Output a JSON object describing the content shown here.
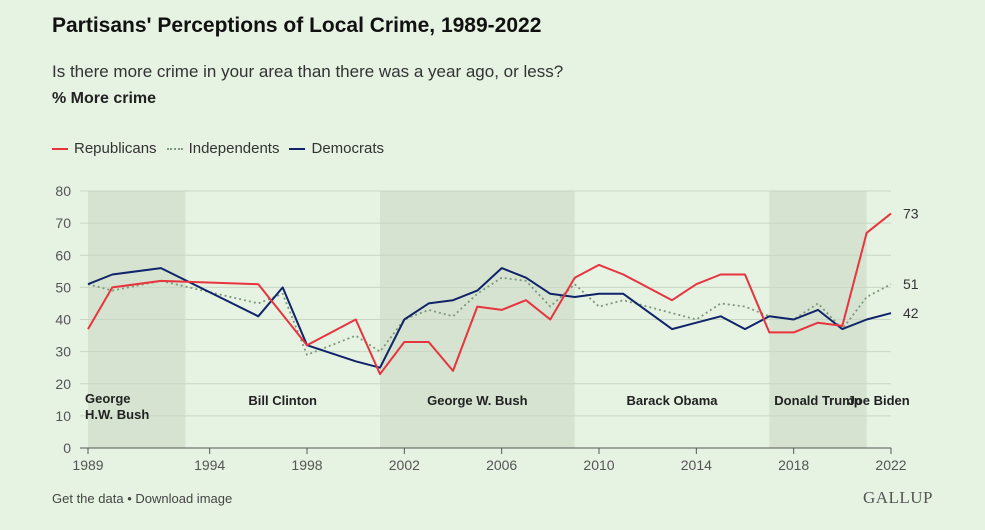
{
  "title": "Partisans' Perceptions of Local Crime, 1989-2022",
  "subtitle": "Is there more crime in your area than there was a year ago, or less?",
  "measure_label": "% More crime",
  "footer": {
    "get_data": "Get the data",
    "separator": "•",
    "download": "Download image",
    "brand": "GALLUP"
  },
  "colors": {
    "republicans": "#e8343e",
    "independents": "#7d9a7d",
    "democrats": "#10246a",
    "shade": "#d5e3d0",
    "background": "#e6f2e2"
  },
  "chart_data": {
    "type": "line",
    "xlim": [
      1989,
      2022
    ],
    "ylim": [
      0,
      80
    ],
    "x_ticks": [
      1989,
      1994,
      1998,
      2002,
      2006,
      2010,
      2014,
      2018,
      2022
    ],
    "y_ticks": [
      0,
      10,
      20,
      30,
      40,
      50,
      60,
      70,
      80
    ],
    "grid": true,
    "legend_position": "top-left",
    "series": [
      {
        "name": "Republicans",
        "style": "solid",
        "end_label": "73",
        "points": [
          [
            1989,
            37
          ],
          [
            1990,
            50
          ],
          [
            1992,
            52
          ],
          [
            1996,
            51
          ],
          [
            1998,
            32
          ],
          [
            2000,
            40
          ],
          [
            2001,
            23
          ],
          [
            2002,
            33
          ],
          [
            2003,
            33
          ],
          [
            2004,
            24
          ],
          [
            2005,
            44
          ],
          [
            2006,
            43
          ],
          [
            2007,
            46
          ],
          [
            2008,
            40
          ],
          [
            2009,
            53
          ],
          [
            2010,
            57
          ],
          [
            2011,
            54
          ],
          [
            2013,
            46
          ],
          [
            2014,
            51
          ],
          [
            2015,
            54
          ],
          [
            2016,
            54
          ],
          [
            2017,
            36
          ],
          [
            2018,
            36
          ],
          [
            2019,
            39
          ],
          [
            2020,
            38
          ],
          [
            2021,
            67
          ],
          [
            2022,
            73
          ]
        ]
      },
      {
        "name": "Independents",
        "style": "dotted",
        "end_label": "51",
        "points": [
          [
            1989,
            51
          ],
          [
            1990,
            49
          ],
          [
            1992,
            52
          ],
          [
            1996,
            45
          ],
          [
            1997,
            48
          ],
          [
            1998,
            29
          ],
          [
            2000,
            35
          ],
          [
            2001,
            30
          ],
          [
            2002,
            40
          ],
          [
            2003,
            43
          ],
          [
            2004,
            41
          ],
          [
            2005,
            48
          ],
          [
            2006,
            53
          ],
          [
            2007,
            52
          ],
          [
            2008,
            44
          ],
          [
            2009,
            51
          ],
          [
            2010,
            44
          ],
          [
            2011,
            46
          ],
          [
            2013,
            42
          ],
          [
            2014,
            40
          ],
          [
            2015,
            45
          ],
          [
            2016,
            44
          ],
          [
            2017,
            41
          ],
          [
            2018,
            40
          ],
          [
            2019,
            45
          ],
          [
            2020,
            37
          ],
          [
            2021,
            47
          ],
          [
            2022,
            51
          ]
        ]
      },
      {
        "name": "Democrats",
        "style": "solid",
        "end_label": "42",
        "points": [
          [
            1989,
            51
          ],
          [
            1990,
            54
          ],
          [
            1992,
            56
          ],
          [
            1996,
            41
          ],
          [
            1997,
            50
          ],
          [
            1998,
            32
          ],
          [
            2000,
            27
          ],
          [
            2001,
            25
          ],
          [
            2002,
            40
          ],
          [
            2003,
            45
          ],
          [
            2004,
            46
          ],
          [
            2005,
            49
          ],
          [
            2006,
            56
          ],
          [
            2007,
            53
          ],
          [
            2008,
            48
          ],
          [
            2009,
            47
          ],
          [
            2010,
            48
          ],
          [
            2011,
            48
          ],
          [
            2013,
            37
          ],
          [
            2014,
            39
          ],
          [
            2015,
            41
          ],
          [
            2016,
            37
          ],
          [
            2017,
            41
          ],
          [
            2018,
            40
          ],
          [
            2019,
            43
          ],
          [
            2020,
            37
          ],
          [
            2021,
            40
          ],
          [
            2022,
            42
          ]
        ]
      }
    ],
    "presidencies": [
      {
        "label_lines": [
          "George",
          "H.W. Bush"
        ],
        "start": 1989,
        "end": 1993,
        "shaded": true,
        "align": "start"
      },
      {
        "label_lines": [
          "Bill Clinton"
        ],
        "start": 1993,
        "end": 2001,
        "shaded": false,
        "align": "middle"
      },
      {
        "label_lines": [
          "George W. Bush"
        ],
        "start": 2001,
        "end": 2009,
        "shaded": true,
        "align": "middle"
      },
      {
        "label_lines": [
          "Barack Obama"
        ],
        "start": 2009,
        "end": 2017,
        "shaded": false,
        "align": "middle"
      },
      {
        "label_lines": [
          "Donald Trump"
        ],
        "start": 2017,
        "end": 2021,
        "shaded": true,
        "align": "middle"
      },
      {
        "label_lines": [
          "Joe Biden"
        ],
        "start": 2021,
        "end": 2022,
        "shaded": false,
        "align": "middle"
      }
    ]
  }
}
